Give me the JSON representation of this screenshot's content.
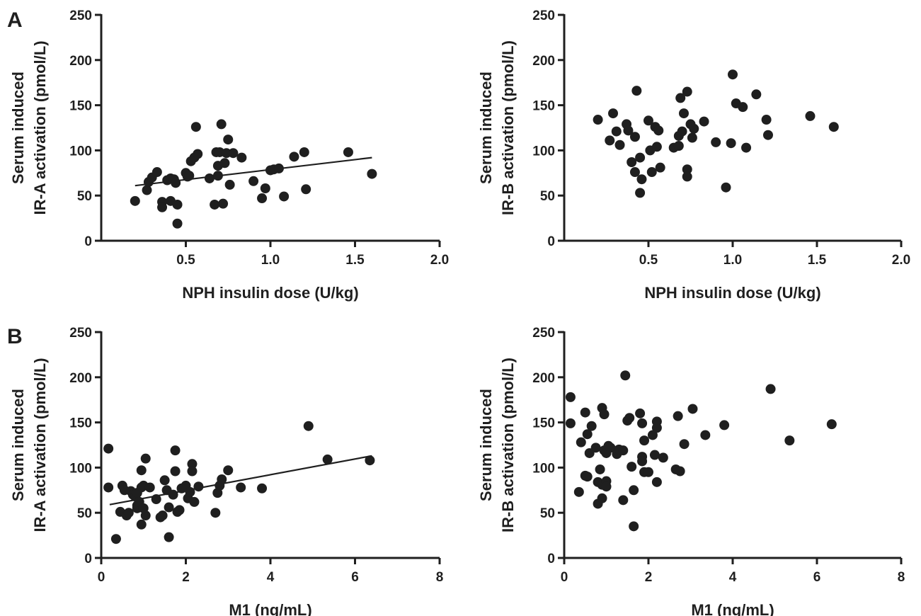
{
  "panel_labels": {
    "A": "A",
    "B": "B"
  },
  "chart_data": [
    {
      "type": "scatter",
      "panel": "A",
      "ylabel_lines": [
        "Serum induced",
        "IR-A activation (pmol/L)"
      ],
      "xlabel": "NPH insulin dose (U/kg)",
      "xlim": [
        0,
        2.0
      ],
      "ylim": [
        0,
        250
      ],
      "xticks": [
        0.5,
        1.0,
        1.5,
        2.0
      ],
      "xtick_labels": [
        "0.5",
        "1.0",
        "1.5",
        "2.0"
      ],
      "yticks": [
        0,
        50,
        100,
        150,
        200,
        250
      ],
      "ytick_labels": [
        "0",
        "50",
        "100",
        "150",
        "200",
        "250"
      ],
      "grid": false,
      "trendline": {
        "x": [
          0.2,
          1.6
        ],
        "y": [
          61,
          92
        ]
      },
      "points": [
        [
          0.2,
          44
        ],
        [
          0.27,
          56
        ],
        [
          0.28,
          65
        ],
        [
          0.3,
          70
        ],
        [
          0.33,
          76
        ],
        [
          0.36,
          43
        ],
        [
          0.36,
          37
        ],
        [
          0.39,
          67
        ],
        [
          0.41,
          69
        ],
        [
          0.41,
          44
        ],
        [
          0.43,
          68
        ],
        [
          0.44,
          64
        ],
        [
          0.45,
          40
        ],
        [
          0.45,
          19
        ],
        [
          0.5,
          75
        ],
        [
          0.51,
          71
        ],
        [
          0.52,
          72
        ],
        [
          0.53,
          88
        ],
        [
          0.55,
          92
        ],
        [
          0.56,
          126
        ],
        [
          0.57,
          96
        ],
        [
          0.64,
          69
        ],
        [
          0.67,
          40
        ],
        [
          0.68,
          98
        ],
        [
          0.69,
          72
        ],
        [
          0.69,
          83
        ],
        [
          0.7,
          98
        ],
        [
          0.71,
          129
        ],
        [
          0.72,
          41
        ],
        [
          0.73,
          86
        ],
        [
          0.74,
          97
        ],
        [
          0.75,
          112
        ],
        [
          0.76,
          62
        ],
        [
          0.78,
          97
        ],
        [
          0.83,
          92
        ],
        [
          0.9,
          66
        ],
        [
          0.95,
          47
        ],
        [
          0.97,
          58
        ],
        [
          1.0,
          78
        ],
        [
          1.02,
          79
        ],
        [
          1.05,
          80
        ],
        [
          1.08,
          49
        ],
        [
          1.14,
          93
        ],
        [
          1.2,
          98
        ],
        [
          1.21,
          57
        ],
        [
          1.46,
          98
        ],
        [
          1.6,
          74
        ]
      ]
    },
    {
      "type": "scatter",
      "panel": "A",
      "ylabel_lines": [
        "Serum induced",
        "IR-B activation (pmol/L)"
      ],
      "xlabel": "NPH insulin dose (U/kg)",
      "xlim": [
        0,
        2.0
      ],
      "ylim": [
        0,
        250
      ],
      "xticks": [
        0.5,
        1.0,
        1.5,
        2.0
      ],
      "xtick_labels": [
        "0.5",
        "1.0",
        "1.5",
        "2.0"
      ],
      "yticks": [
        0,
        50,
        100,
        150,
        200,
        250
      ],
      "ytick_labels": [
        "0",
        "50",
        "100",
        "150",
        "200",
        "250"
      ],
      "grid": false,
      "points": [
        [
          0.2,
          134
        ],
        [
          0.27,
          111
        ],
        [
          0.29,
          141
        ],
        [
          0.31,
          121
        ],
        [
          0.33,
          106
        ],
        [
          0.37,
          129
        ],
        [
          0.38,
          122
        ],
        [
          0.4,
          87
        ],
        [
          0.42,
          76
        ],
        [
          0.42,
          115
        ],
        [
          0.43,
          166
        ],
        [
          0.45,
          53
        ],
        [
          0.45,
          92
        ],
        [
          0.46,
          68
        ],
        [
          0.5,
          133
        ],
        [
          0.51,
          100
        ],
        [
          0.52,
          76
        ],
        [
          0.54,
          126
        ],
        [
          0.55,
          104
        ],
        [
          0.56,
          122
        ],
        [
          0.57,
          81
        ],
        [
          0.65,
          103
        ],
        [
          0.68,
          105
        ],
        [
          0.68,
          116
        ],
        [
          0.69,
          158
        ],
        [
          0.7,
          121
        ],
        [
          0.71,
          141
        ],
        [
          0.73,
          165
        ],
        [
          0.73,
          79
        ],
        [
          0.73,
          71
        ],
        [
          0.75,
          129
        ],
        [
          0.76,
          114
        ],
        [
          0.77,
          124
        ],
        [
          0.83,
          132
        ],
        [
          0.9,
          109
        ],
        [
          0.96,
          59
        ],
        [
          0.99,
          108
        ],
        [
          1.0,
          184
        ],
        [
          1.02,
          152
        ],
        [
          1.06,
          148
        ],
        [
          1.08,
          103
        ],
        [
          1.14,
          162
        ],
        [
          1.2,
          134
        ],
        [
          1.21,
          117
        ],
        [
          1.46,
          138
        ],
        [
          1.6,
          126
        ]
      ]
    },
    {
      "type": "scatter",
      "panel": "B",
      "ylabel_lines": [
        "Serum induced",
        "IR-A activation (pmol/L)"
      ],
      "xlabel": "M1 (ng/mL)",
      "xlim": [
        0,
        8
      ],
      "ylim": [
        0,
        250
      ],
      "xticks": [
        0,
        2,
        4,
        6,
        8
      ],
      "xtick_labels": [
        "0",
        "2",
        "4",
        "6",
        "8"
      ],
      "yticks": [
        0,
        50,
        100,
        150,
        200,
        250
      ],
      "ytick_labels": [
        "0",
        "50",
        "100",
        "150",
        "200",
        "250"
      ],
      "grid": false,
      "trendline": {
        "x": [
          0.2,
          6.4
        ],
        "y": [
          59,
          113
        ]
      },
      "points": [
        [
          0.17,
          121
        ],
        [
          0.17,
          78
        ],
        [
          0.35,
          21
        ],
        [
          0.45,
          51
        ],
        [
          0.5,
          80
        ],
        [
          0.55,
          75
        ],
        [
          0.6,
          47
        ],
        [
          0.65,
          50
        ],
        [
          0.7,
          74
        ],
        [
          0.75,
          70
        ],
        [
          0.8,
          68
        ],
        [
          0.85,
          72
        ],
        [
          0.85,
          58
        ],
        [
          0.85,
          55
        ],
        [
          0.9,
          62
        ],
        [
          0.95,
          37
        ],
        [
          0.95,
          97
        ],
        [
          0.95,
          78
        ],
        [
          1.0,
          80
        ],
        [
          1.0,
          55
        ],
        [
          1.05,
          47
        ],
        [
          1.05,
          110
        ],
        [
          1.15,
          78
        ],
        [
          1.3,
          65
        ],
        [
          1.4,
          45
        ],
        [
          1.45,
          47
        ],
        [
          1.5,
          86
        ],
        [
          1.55,
          75
        ],
        [
          1.6,
          56
        ],
        [
          1.6,
          23
        ],
        [
          1.7,
          70
        ],
        [
          1.75,
          96
        ],
        [
          1.75,
          119
        ],
        [
          1.8,
          51
        ],
        [
          1.85,
          53
        ],
        [
          1.9,
          77
        ],
        [
          2.0,
          80
        ],
        [
          2.05,
          66
        ],
        [
          2.1,
          73
        ],
        [
          2.15,
          104
        ],
        [
          2.15,
          96
        ],
        [
          2.2,
          62
        ],
        [
          2.3,
          79
        ],
        [
          2.7,
          50
        ],
        [
          2.75,
          72
        ],
        [
          2.8,
          80
        ],
        [
          2.85,
          87
        ],
        [
          3.0,
          97
        ],
        [
          3.3,
          78
        ],
        [
          3.8,
          77
        ],
        [
          4.9,
          146
        ],
        [
          5.35,
          109
        ],
        [
          6.35,
          108
        ]
      ]
    },
    {
      "type": "scatter",
      "panel": "B",
      "ylabel_lines": [
        "Serum induced",
        "IR-B activation (pmol/L)"
      ],
      "xlabel": "M1 (ng/mL)",
      "xlim": [
        0,
        8
      ],
      "ylim": [
        0,
        250
      ],
      "xticks": [
        0,
        2,
        4,
        6,
        8
      ],
      "xtick_labels": [
        "0",
        "2",
        "4",
        "6",
        "8"
      ],
      "yticks": [
        0,
        50,
        100,
        150,
        200,
        250
      ],
      "ytick_labels": [
        "0",
        "50",
        "100",
        "150",
        "200",
        "250"
      ],
      "grid": false,
      "points": [
        [
          0.15,
          178
        ],
        [
          0.15,
          149
        ],
        [
          0.35,
          73
        ],
        [
          0.4,
          128
        ],
        [
          0.5,
          161
        ],
        [
          0.5,
          91
        ],
        [
          0.55,
          90
        ],
        [
          0.55,
          137
        ],
        [
          0.6,
          116
        ],
        [
          0.65,
          146
        ],
        [
          0.75,
          122
        ],
        [
          0.8,
          84
        ],
        [
          0.8,
          60
        ],
        [
          0.85,
          98
        ],
        [
          0.9,
          66
        ],
        [
          0.9,
          166
        ],
        [
          0.9,
          81
        ],
        [
          0.95,
          159
        ],
        [
          0.95,
          119
        ],
        [
          1.0,
          116
        ],
        [
          1.0,
          85
        ],
        [
          1.0,
          79
        ],
        [
          1.05,
          124
        ],
        [
          1.1,
          122
        ],
        [
          1.25,
          115
        ],
        [
          1.3,
          120
        ],
        [
          1.4,
          119
        ],
        [
          1.4,
          64
        ],
        [
          1.45,
          202
        ],
        [
          1.5,
          152
        ],
        [
          1.55,
          155
        ],
        [
          1.6,
          101
        ],
        [
          1.65,
          35
        ],
        [
          1.65,
          75
        ],
        [
          1.8,
          160
        ],
        [
          1.85,
          112
        ],
        [
          1.85,
          149
        ],
        [
          1.85,
          107
        ],
        [
          1.9,
          130
        ],
        [
          1.9,
          95
        ],
        [
          2.0,
          95
        ],
        [
          2.1,
          136
        ],
        [
          2.15,
          114
        ],
        [
          2.2,
          151
        ],
        [
          2.2,
          144
        ],
        [
          2.2,
          84
        ],
        [
          2.35,
          111
        ],
        [
          2.65,
          98
        ],
        [
          2.7,
          157
        ],
        [
          2.75,
          96
        ],
        [
          2.85,
          126
        ],
        [
          3.05,
          165
        ],
        [
          3.35,
          136
        ],
        [
          3.8,
          147
        ],
        [
          4.9,
          187
        ],
        [
          5.35,
          130
        ],
        [
          6.35,
          148
        ]
      ]
    }
  ]
}
